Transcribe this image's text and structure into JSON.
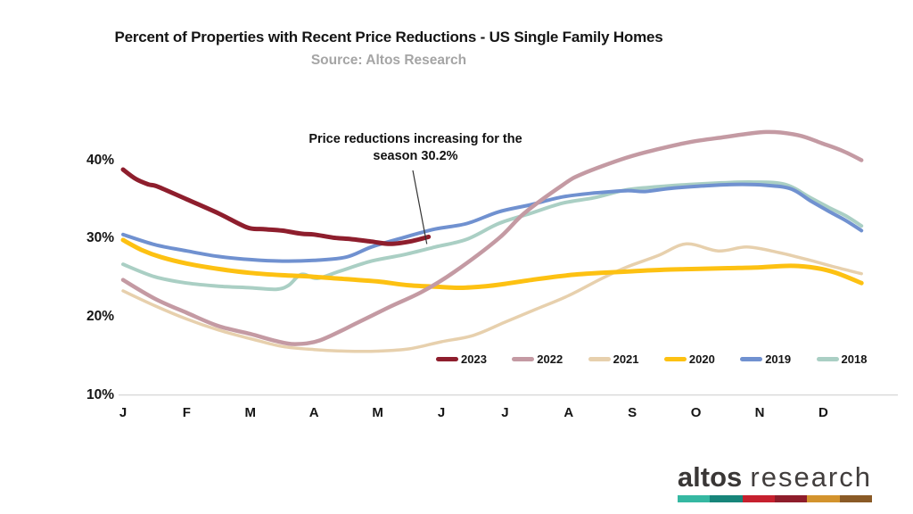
{
  "header": {
    "title": "Percent of Properties with Recent Price Reductions - US Single Family Homes",
    "subtitle": "Source: Altos Research"
  },
  "annotation": {
    "line1": "Price reductions increasing for the",
    "line2": "season 30.2%"
  },
  "chart_data": {
    "type": "line",
    "title": "Percent of Properties with Recent Price Reductions - US Single Family Homes",
    "subtitle": "Source: Altos Research",
    "x_axis": {
      "ticks": [
        "J",
        "F",
        "M",
        "A",
        "M",
        "J",
        "J",
        "A",
        "S",
        "O",
        "N",
        "D"
      ],
      "unit": "month"
    },
    "y_axis": {
      "ticks": [
        {
          "label": "40%",
          "value": 40
        },
        {
          "label": "30%",
          "value": 30
        },
        {
          "label": "20%",
          "value": 20
        },
        {
          "label": "10%",
          "value": 10
        }
      ],
      "min": 10,
      "max": 45,
      "gridline_at": 10
    },
    "legend_position": "inside-bottom-right",
    "annotation_text": "Price reductions increasing for the season 30.2%",
    "annotation_value": 30.2,
    "axis_line_color": "#d6d6d6",
    "series": [
      {
        "name": "2023",
        "color": "#8e1e2d",
        "width": 5,
        "points": [
          [
            0,
            38.8
          ],
          [
            0.2,
            37.6
          ],
          [
            0.4,
            36.9
          ],
          [
            0.55,
            36.6
          ],
          [
            1,
            35.0
          ],
          [
            1.5,
            33.2
          ],
          [
            1.95,
            31.4
          ],
          [
            2.2,
            31.2
          ],
          [
            2.5,
            31.0
          ],
          [
            2.8,
            30.6
          ],
          [
            3,
            30.5
          ],
          [
            3.3,
            30.1
          ],
          [
            3.6,
            29.9
          ],
          [
            3.9,
            29.6
          ],
          [
            4.2,
            29.3
          ],
          [
            4.5,
            29.6
          ],
          [
            4.8,
            30.2
          ]
        ]
      },
      {
        "name": "2022",
        "color": "#c49aa3",
        "width": 4.5,
        "points": [
          [
            0,
            24.7
          ],
          [
            0.5,
            22.3
          ],
          [
            1,
            20.5
          ],
          [
            1.5,
            18.8
          ],
          [
            2,
            17.8
          ],
          [
            2.4,
            16.9
          ],
          [
            2.7,
            16.5
          ],
          [
            3.1,
            17.0
          ],
          [
            3.7,
            19.3
          ],
          [
            4.2,
            21.3
          ],
          [
            4.7,
            23.2
          ],
          [
            5.2,
            25.7
          ],
          [
            5.9,
            30.0
          ],
          [
            6.3,
            33.2
          ],
          [
            6.9,
            36.8
          ],
          [
            7.2,
            38.2
          ],
          [
            7.9,
            40.3
          ],
          [
            8.4,
            41.4
          ],
          [
            8.9,
            42.3
          ],
          [
            9.4,
            42.9
          ],
          [
            10.1,
            43.6
          ],
          [
            10.6,
            43.2
          ],
          [
            11.0,
            42.1
          ],
          [
            11.3,
            41.2
          ],
          [
            11.6,
            40.0
          ]
        ]
      },
      {
        "name": "2021",
        "color": "#e7d0ad",
        "width": 3.5,
        "points": [
          [
            0,
            23.3
          ],
          [
            0.5,
            21.4
          ],
          [
            1,
            19.7
          ],
          [
            1.5,
            18.3
          ],
          [
            2,
            17.2
          ],
          [
            2.5,
            16.2
          ],
          [
            3,
            15.8
          ],
          [
            3.5,
            15.6
          ],
          [
            4,
            15.6
          ],
          [
            4.5,
            15.9
          ],
          [
            5,
            16.8
          ],
          [
            5.5,
            17.6
          ],
          [
            6,
            19.3
          ],
          [
            6.5,
            21.0
          ],
          [
            7,
            22.7
          ],
          [
            7.5,
            24.8
          ],
          [
            7.9,
            26.3
          ],
          [
            8.4,
            27.8
          ],
          [
            8.85,
            29.3
          ],
          [
            9.35,
            28.4
          ],
          [
            9.8,
            28.9
          ],
          [
            10.3,
            28.2
          ],
          [
            10.8,
            27.2
          ],
          [
            11.2,
            26.3
          ],
          [
            11.6,
            25.5
          ]
        ]
      },
      {
        "name": "2020",
        "color": "#fdc112",
        "width": 5,
        "points": [
          [
            0,
            29.8
          ],
          [
            0.3,
            28.5
          ],
          [
            0.6,
            27.6
          ],
          [
            1,
            26.8
          ],
          [
            1.5,
            26.1
          ],
          [
            2,
            25.6
          ],
          [
            2.5,
            25.3
          ],
          [
            3,
            25.1
          ],
          [
            3.5,
            24.8
          ],
          [
            4,
            24.5
          ],
          [
            4.5,
            24.0
          ],
          [
            5,
            23.8
          ],
          [
            5.3,
            23.7
          ],
          [
            5.7,
            23.9
          ],
          [
            6,
            24.2
          ],
          [
            6.5,
            24.8
          ],
          [
            7,
            25.3
          ],
          [
            7.5,
            25.6
          ],
          [
            8,
            25.8
          ],
          [
            8.5,
            26.0
          ],
          [
            9,
            26.1
          ],
          [
            9.5,
            26.2
          ],
          [
            10,
            26.3
          ],
          [
            10.5,
            26.5
          ],
          [
            10.9,
            26.2
          ],
          [
            11.2,
            25.6
          ],
          [
            11.6,
            24.3
          ]
        ]
      },
      {
        "name": "2019",
        "color": "#7091d0",
        "width": 4,
        "points": [
          [
            0,
            30.5
          ],
          [
            0.5,
            29.2
          ],
          [
            1,
            28.4
          ],
          [
            1.5,
            27.7
          ],
          [
            2,
            27.3
          ],
          [
            2.5,
            27.1
          ],
          [
            3,
            27.2
          ],
          [
            3.5,
            27.6
          ],
          [
            3.9,
            28.9
          ],
          [
            4.4,
            30.1
          ],
          [
            4.9,
            31.2
          ],
          [
            5.4,
            31.9
          ],
          [
            5.9,
            33.4
          ],
          [
            6.4,
            34.3
          ],
          [
            6.9,
            35.3
          ],
          [
            7.4,
            35.8
          ],
          [
            7.9,
            36.1
          ],
          [
            8.2,
            36.0
          ],
          [
            8.6,
            36.4
          ],
          [
            9.1,
            36.7
          ],
          [
            9.6,
            36.9
          ],
          [
            10.1,
            36.8
          ],
          [
            10.5,
            36.3
          ],
          [
            10.8,
            34.8
          ],
          [
            11.1,
            33.4
          ],
          [
            11.35,
            32.3
          ],
          [
            11.6,
            31.0
          ]
        ]
      },
      {
        "name": "2018",
        "color": "#aacfc4",
        "width": 4,
        "points": [
          [
            0,
            26.7
          ],
          [
            0.5,
            25.1
          ],
          [
            1,
            24.3
          ],
          [
            1.5,
            23.9
          ],
          [
            2,
            23.7
          ],
          [
            2.4,
            23.5
          ],
          [
            2.6,
            24.0
          ],
          [
            2.8,
            25.4
          ],
          [
            3.05,
            24.9
          ],
          [
            3.4,
            25.8
          ],
          [
            3.9,
            27.1
          ],
          [
            4.4,
            27.9
          ],
          [
            4.9,
            28.9
          ],
          [
            5.4,
            29.9
          ],
          [
            5.9,
            31.9
          ],
          [
            6.4,
            33.2
          ],
          [
            6.9,
            34.5
          ],
          [
            7.4,
            35.2
          ],
          [
            7.9,
            36.2
          ],
          [
            8.4,
            36.6
          ],
          [
            8.9,
            36.9
          ],
          [
            9.4,
            37.1
          ],
          [
            9.9,
            37.2
          ],
          [
            10.4,
            36.9
          ],
          [
            10.8,
            35.2
          ],
          [
            11.1,
            33.9
          ],
          [
            11.35,
            32.9
          ],
          [
            11.6,
            31.6
          ]
        ]
      }
    ]
  },
  "logo": {
    "brand_bold": "altos",
    "brand_light": "research",
    "bar_colors": [
      "#35b8a2",
      "#17857a",
      "#c6202e",
      "#8e1d2b",
      "#d3932d",
      "#8a5a26"
    ]
  }
}
